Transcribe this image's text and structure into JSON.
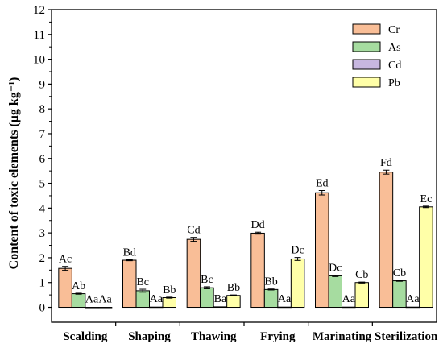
{
  "chart_data": {
    "type": "bar",
    "title": "",
    "xlabel": "",
    "ylabel": "Content of  toxic elements (μg kg⁻¹)",
    "ylim": [
      -0.6,
      12
    ],
    "yticks": [
      0,
      1,
      2,
      3,
      4,
      5,
      6,
      7,
      8,
      9,
      10,
      11,
      12
    ],
    "categories": [
      "Scalding",
      "Shaping",
      "Thawing",
      "Frying",
      "Marinating",
      "Sterilization"
    ],
    "legend_position": "top-right",
    "grid": false,
    "series": [
      {
        "name": "Cr",
        "color": "#F9BE97",
        "values": [
          1.57,
          1.9,
          2.74,
          2.99,
          4.62,
          5.45
        ],
        "errors": [
          0.08,
          0.02,
          0.08,
          0.04,
          0.09,
          0.08
        ],
        "labels": [
          "Ac",
          "Bd",
          "Cd",
          "Dd",
          "Ed",
          "Fd"
        ]
      },
      {
        "name": "As",
        "color": "#A6DCA0",
        "values": [
          0.55,
          0.67,
          0.79,
          0.72,
          1.27,
          1.07
        ],
        "errors": [
          0.02,
          0.06,
          0.04,
          0.02,
          0.03,
          0.02
        ],
        "labels": [
          "Ab",
          "Bc",
          "Bc",
          "Bb",
          "Dc",
          "Cb"
        ]
      },
      {
        "name": "Cd",
        "color": "#C7B7E0",
        "values": [
          0.0,
          0.01,
          0.02,
          0.01,
          0.01,
          0.01
        ],
        "errors": [
          0.0,
          0.0,
          0.0,
          0.0,
          0.0,
          0.0
        ],
        "labels": [
          "Aa",
          "Aa",
          "Ba",
          "Aa",
          "Aa",
          "Aa"
        ]
      },
      {
        "name": "Pb",
        "color": "#FFFFA8",
        "values": [
          0.0,
          0.39,
          0.48,
          1.95,
          1.0,
          4.05
        ],
        "errors": [
          0.0,
          0.02,
          0.02,
          0.06,
          0.02,
          0.03
        ],
        "labels": [
          "Aa",
          "Bb",
          "Bb",
          "Dc",
          "Cb",
          "Ec"
        ]
      }
    ]
  }
}
